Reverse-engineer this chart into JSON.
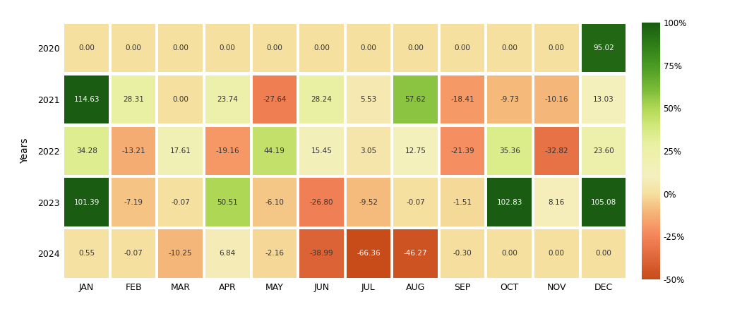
{
  "years": [
    "2020",
    "2021",
    "2022",
    "2023",
    "2024"
  ],
  "months": [
    "JAN",
    "FEB",
    "MAR",
    "APR",
    "MAY",
    "JUN",
    "JUL",
    "AUG",
    "SEP",
    "OCT",
    "NOV",
    "DEC"
  ],
  "values": [
    [
      0.0,
      0.0,
      0.0,
      0.0,
      0.0,
      0.0,
      0.0,
      0.0,
      0.0,
      0.0,
      0.0,
      95.02
    ],
    [
      114.63,
      28.31,
      0.0,
      23.74,
      -27.64,
      28.24,
      5.53,
      57.62,
      -18.41,
      -9.73,
      -10.16,
      13.03
    ],
    [
      34.28,
      -13.21,
      17.61,
      -19.16,
      44.19,
      15.45,
      3.05,
      12.75,
      -21.39,
      35.36,
      -32.82,
      23.6
    ],
    [
      101.39,
      -7.19,
      -0.07,
      50.51,
      -6.1,
      -26.8,
      -9.52,
      -0.07,
      -1.51,
      102.83,
      8.16,
      105.08
    ],
    [
      0.55,
      -0.07,
      -10.25,
      6.84,
      -2.16,
      -38.99,
      -66.36,
      -46.27,
      -0.3,
      0.0,
      0.0,
      0.0
    ]
  ],
  "vmin": -50,
  "vmax": 100,
  "colorbar_ticks": [
    -50,
    -25,
    0,
    25,
    50,
    75,
    100
  ],
  "colorbar_labels": [
    "-50%",
    "-25%",
    "0%",
    "25%",
    "50%",
    "75%",
    "100%"
  ],
  "ylabel": "Years",
  "background_color": "#ffffff",
  "fig_width": 10.51,
  "fig_height": 4.55,
  "dpi": 100,
  "colormap_nodes": [
    [
      0.0,
      "#c84b1a"
    ],
    [
      0.167,
      "#f5845a"
    ],
    [
      0.267,
      "#f5b97a"
    ],
    [
      0.333,
      "#f5e0a0"
    ],
    [
      0.4,
      "#f5f0c0"
    ],
    [
      0.467,
      "#f0f0b0"
    ],
    [
      0.533,
      "#e8f0a0"
    ],
    [
      0.6,
      "#d0e878"
    ],
    [
      0.667,
      "#b0d855"
    ],
    [
      0.733,
      "#7fbe3a"
    ],
    [
      0.833,
      "#4a9a22"
    ],
    [
      0.917,
      "#2e7d18"
    ],
    [
      1.0,
      "#1a5c12"
    ]
  ]
}
